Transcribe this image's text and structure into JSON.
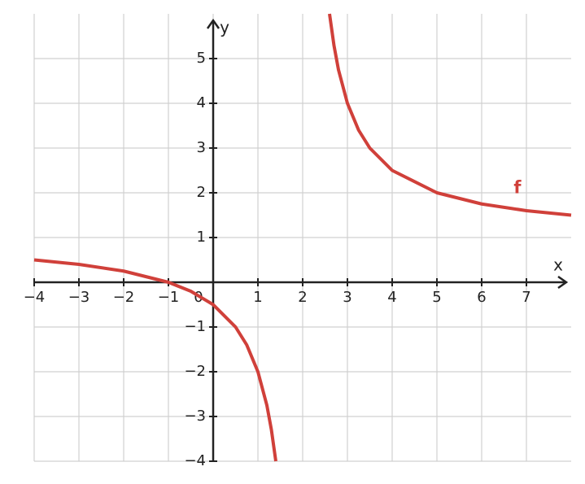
{
  "chart_data": {
    "type": "line",
    "x_label": "x",
    "y_label": "y",
    "x": [
      -4,
      -3,
      -2,
      -1,
      -0.5,
      0,
      0.5,
      0.75,
      1,
      1.2,
      1.3,
      1.4,
      2,
      2.6,
      2.7,
      2.8,
      3,
      3.25,
      3.5,
      4,
      5,
      6,
      7,
      8
    ],
    "series": [
      {
        "name": "f",
        "color": "#d0403a",
        "values": [
          0.5,
          0.4,
          0.25,
          0,
          -0.2,
          -0.5,
          -1,
          -1.4,
          -2,
          -2.75,
          -3.29,
          -4,
          null,
          6,
          5.29,
          4.75,
          4,
          3.4,
          3,
          2.5,
          2,
          1.75,
          1.6,
          1.5
        ]
      }
    ],
    "xlim": [
      -4,
      8
    ],
    "ylim": [
      -4,
      6
    ],
    "xticks": [
      {
        "value": -4,
        "label": "−4"
      },
      {
        "value": -3,
        "label": "−3"
      },
      {
        "value": -2,
        "label": "−2"
      },
      {
        "value": -1,
        "label": "−1"
      },
      0,
      1,
      2,
      3,
      4,
      5,
      6,
      7
    ],
    "yticks": [
      {
        "value": -4,
        "label": "−4"
      },
      {
        "value": -3,
        "label": "−3"
      },
      {
        "value": -2,
        "label": "−2"
      },
      {
        "value": -1,
        "label": "−1"
      },
      1,
      2,
      3,
      4,
      5
    ],
    "grid": true
  }
}
